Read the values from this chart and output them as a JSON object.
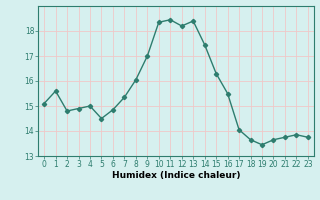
{
  "x": [
    0,
    1,
    2,
    3,
    4,
    5,
    6,
    7,
    8,
    9,
    10,
    11,
    12,
    13,
    14,
    15,
    16,
    17,
    18,
    19,
    20,
    21,
    22,
    23
  ],
  "y": [
    15.1,
    15.6,
    14.8,
    14.9,
    15.0,
    14.5,
    14.85,
    15.35,
    16.05,
    17.0,
    18.35,
    18.45,
    18.2,
    18.4,
    17.45,
    16.3,
    15.5,
    14.05,
    13.65,
    13.45,
    13.65,
    13.75,
    13.85,
    13.75
  ],
  "line_color": "#2e7d6e",
  "marker": "D",
  "markersize": 2.2,
  "linewidth": 1.0,
  "xlabel": "Humidex (Indice chaleur)",
  "xlim": [
    -0.5,
    23.5
  ],
  "ylim": [
    13.0,
    19.0
  ],
  "yticks": [
    13,
    14,
    15,
    16,
    17,
    18
  ],
  "xticks": [
    0,
    1,
    2,
    3,
    4,
    5,
    6,
    7,
    8,
    9,
    10,
    11,
    12,
    13,
    14,
    15,
    16,
    17,
    18,
    19,
    20,
    21,
    22,
    23
  ],
  "bg_color": "#d6f0ef",
  "grid_color": "#f0c8c8",
  "axis_fontsize": 6.5,
  "tick_fontsize": 5.5
}
